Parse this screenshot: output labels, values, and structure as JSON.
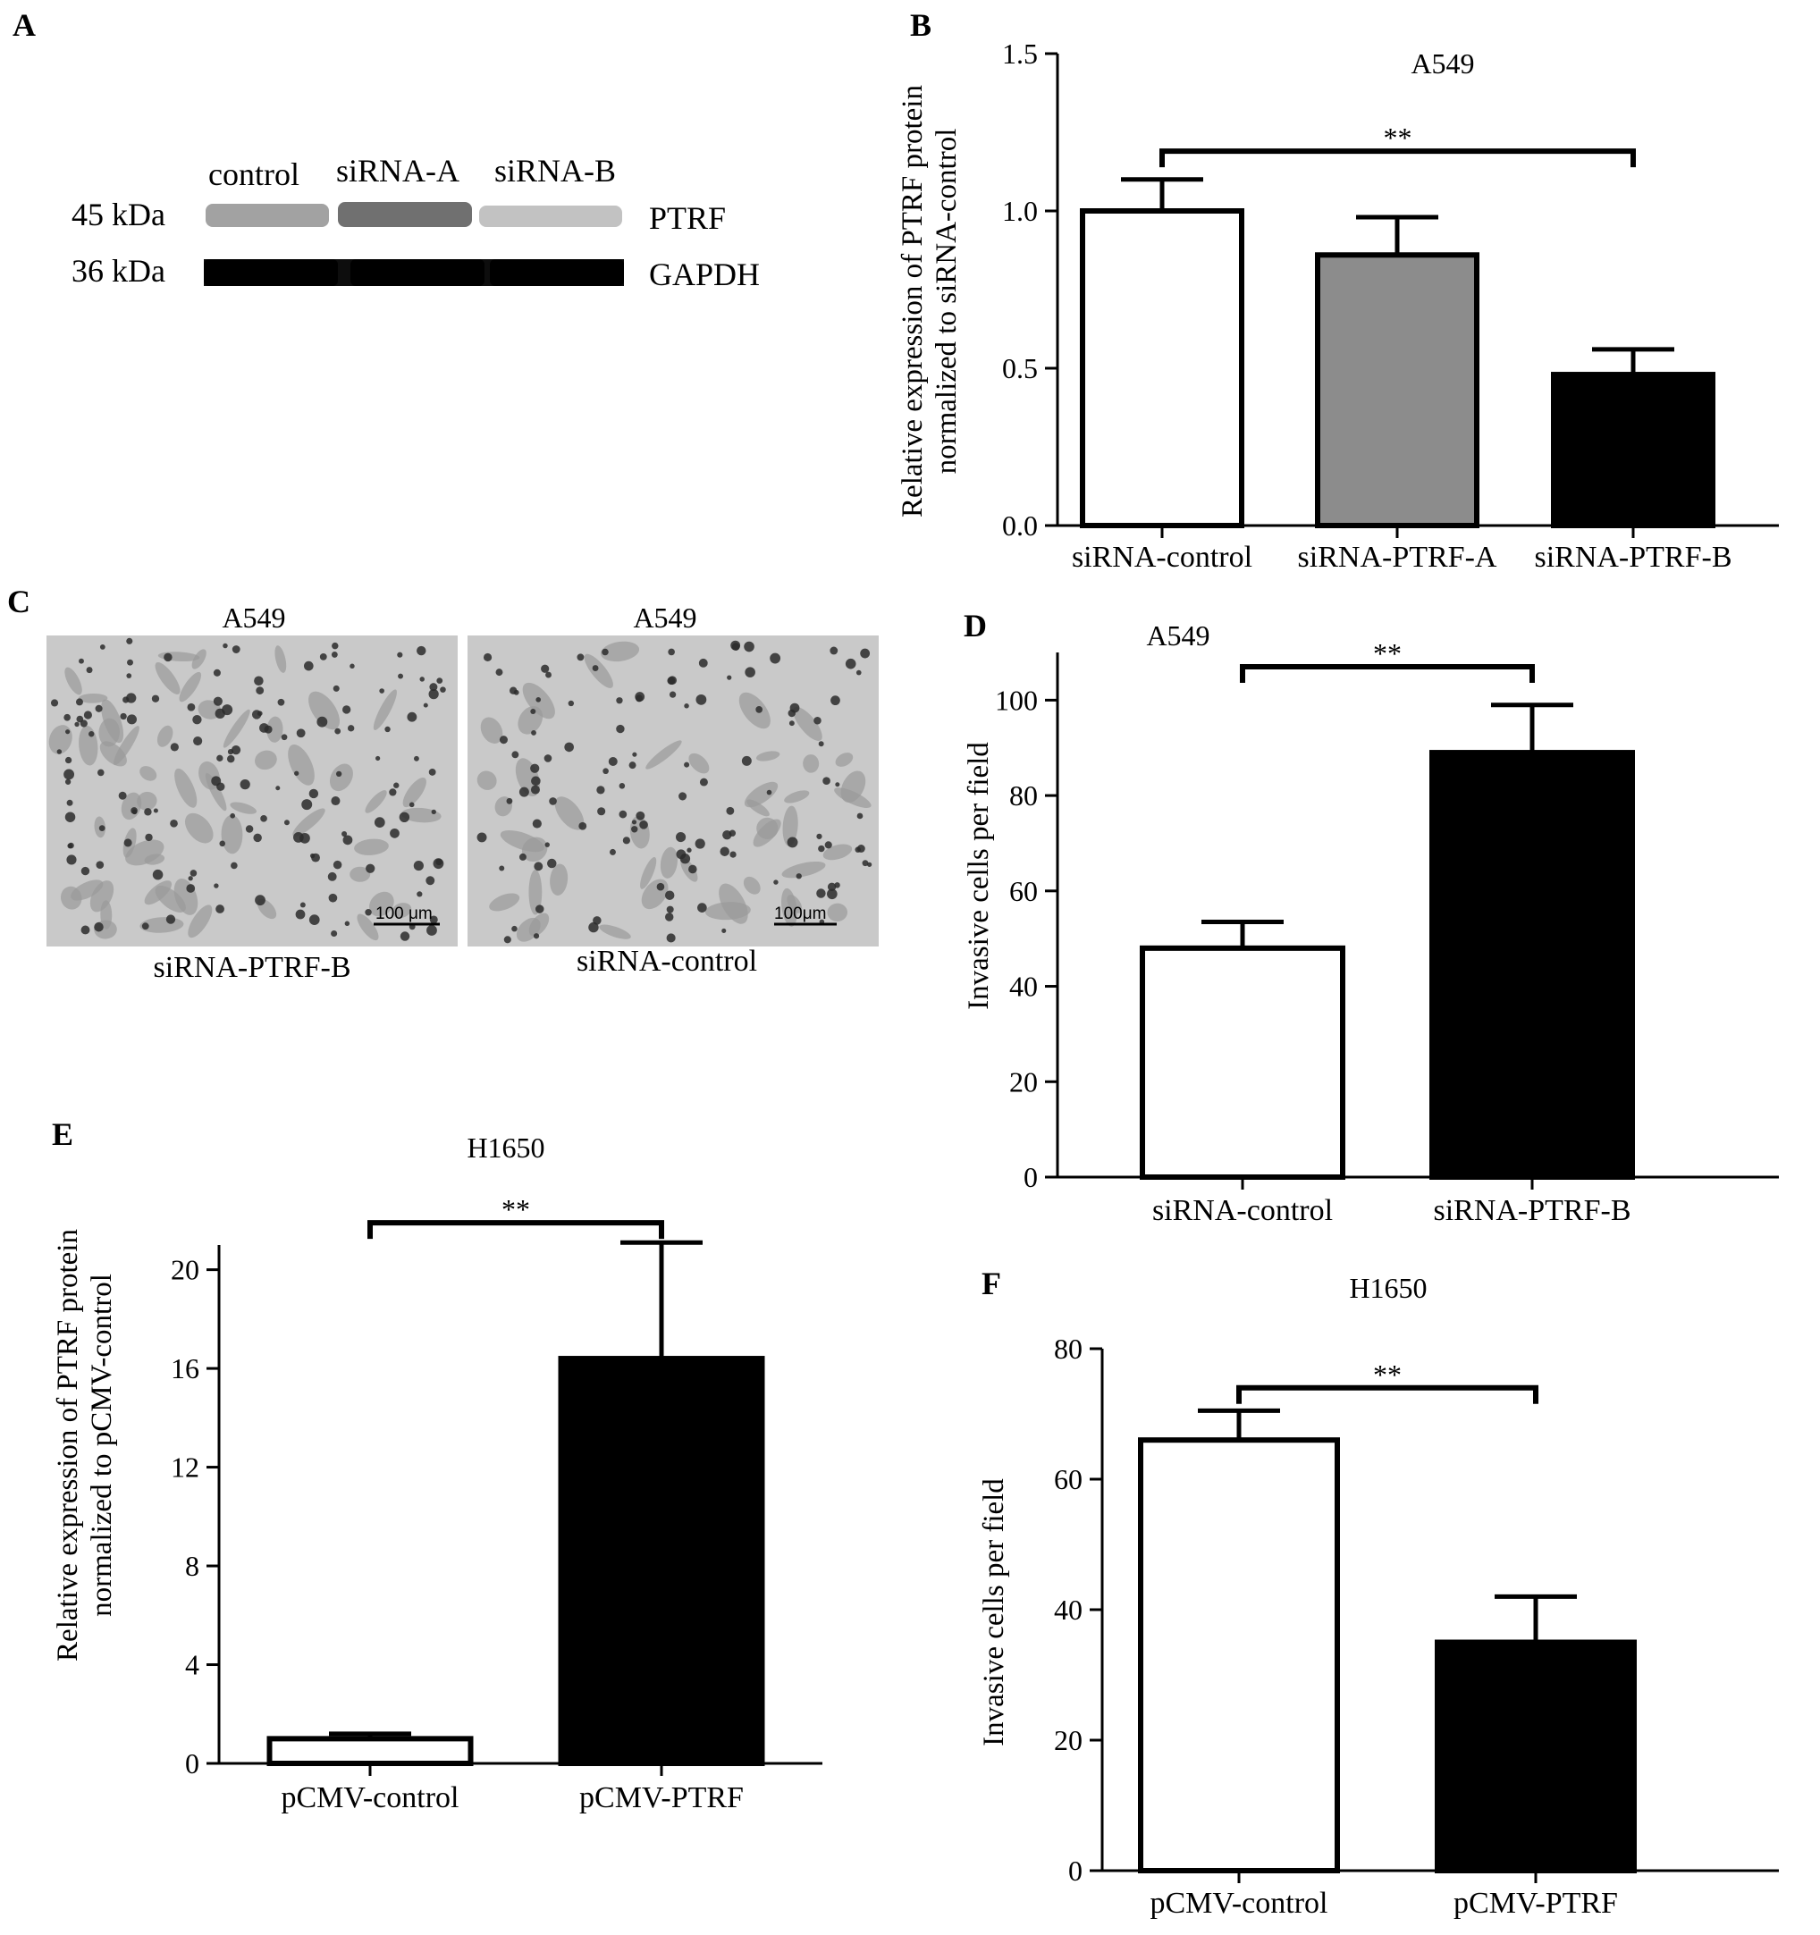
{
  "panels": {
    "A": {
      "letter": "A",
      "lane_labels": [
        "control",
        "siRNA-A",
        "siRNA-B"
      ],
      "bands": [
        {
          "marker": "45 kDa",
          "protein": "PTRF",
          "intensity": [
            0.55,
            0.7,
            0.4
          ]
        },
        {
          "marker": "36 kDa",
          "protein": "GAPDH",
          "intensity": [
            1.0,
            1.0,
            1.0
          ]
        }
      ]
    },
    "C": {
      "letter": "C",
      "images": [
        {
          "title": "A549",
          "caption": "siRNA-PTRF-B",
          "scale_bar": "100 μm"
        },
        {
          "title": "A549",
          "caption": "siRNA-control",
          "scale_bar": "100μm"
        }
      ]
    }
  },
  "chart_data": [
    {
      "id": "B",
      "letter": "B",
      "type": "bar",
      "title": "A549",
      "ylabel_lines": [
        "Relative expression of PTRF protein",
        "normalized to siRNA-control"
      ],
      "categories": [
        "siRNA-control",
        "siRNA-PTRF-A",
        "siRNA-PTRF-B"
      ],
      "values": [
        1.0,
        0.86,
        0.48
      ],
      "errors": [
        0.1,
        0.12,
        0.08
      ],
      "fills": [
        "#ffffff",
        "#8c8c8c",
        "#000000"
      ],
      "ylim": [
        0,
        1.5
      ],
      "yticks": [
        0.0,
        0.5,
        1.0,
        1.5
      ],
      "tick_labels": [
        "0.0",
        "0.5",
        "1.0",
        "1.5"
      ],
      "significance": {
        "from": 0,
        "to": 2,
        "y": 1.19,
        "label": "**"
      }
    },
    {
      "id": "D",
      "letter": "D",
      "type": "bar",
      "title": "A549",
      "ylabel_lines": [
        "Invasive cells  per field"
      ],
      "categories": [
        "siRNA-control",
        "siRNA-PTRF-B"
      ],
      "values": [
        48,
        89
      ],
      "errors": [
        5.5,
        10
      ],
      "fills": [
        "#ffffff",
        "#000000"
      ],
      "ylim": [
        0,
        110
      ],
      "yticks": [
        0,
        20,
        40,
        60,
        80,
        100
      ],
      "tick_labels": [
        "0",
        "20",
        "40",
        "60",
        "80",
        "100"
      ],
      "significance": {
        "from": 0,
        "to": 1,
        "y": 107,
        "label": "**"
      }
    },
    {
      "id": "E",
      "letter": "E",
      "type": "bar",
      "title": "H1650",
      "ylabel_lines": [
        "Relative expression of PTRF protein",
        "normalized to pCMV-control"
      ],
      "categories": [
        "pCMV-control",
        "pCMV-PTRF"
      ],
      "values": [
        1.0,
        16.4
      ],
      "errors": [
        0.2,
        4.7
      ],
      "fills": [
        "#ffffff",
        "#000000"
      ],
      "ylim": [
        0,
        21
      ],
      "yticks": [
        0,
        4,
        8,
        12,
        16,
        20
      ],
      "tick_labels": [
        "0",
        "4",
        "8",
        "12",
        "16",
        "20"
      ],
      "significance": {
        "from": 0,
        "to": 1,
        "y": 21.9,
        "label": "**"
      }
    },
    {
      "id": "F",
      "letter": "F",
      "type": "bar",
      "title": "H1650",
      "ylabel_lines": [
        "Invasive cells  per field"
      ],
      "categories": [
        "pCMV-control",
        "pCMV-PTRF"
      ],
      "values": [
        66,
        35
      ],
      "errors": [
        4.5,
        7
      ],
      "fills": [
        "#ffffff",
        "#000000"
      ],
      "ylim": [
        0,
        80
      ],
      "yticks": [
        0,
        20,
        40,
        60,
        80
      ],
      "tick_labels": [
        "0",
        "20",
        "40",
        "60",
        "80"
      ],
      "significance": {
        "from": 0,
        "to": 1,
        "y": 74,
        "label": "**"
      }
    }
  ]
}
